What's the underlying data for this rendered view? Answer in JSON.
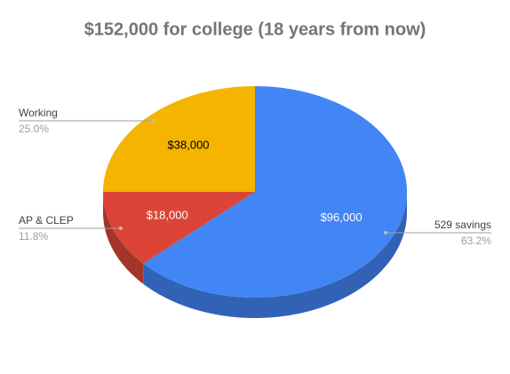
{
  "chart_data": {
    "type": "pie3d",
    "title": "$152,000 for college (18 years from now)",
    "categories": [
      "529 savings",
      "AP & CLEP",
      "Working"
    ],
    "values": [
      96000,
      18000,
      38000
    ],
    "value_labels": [
      "$96,000",
      "$18,000",
      "$38,000"
    ],
    "percent_labels": [
      "63.2%",
      "11.8%",
      "25.0%"
    ],
    "colors": [
      "#4285f4",
      "#db4437",
      "#f4b400"
    ],
    "side_colors": [
      "#3162b5",
      "#a3352a",
      "#b38400"
    ],
    "value_label_colors": [
      "#ffffff",
      "#ffffff",
      "#000000"
    ]
  }
}
